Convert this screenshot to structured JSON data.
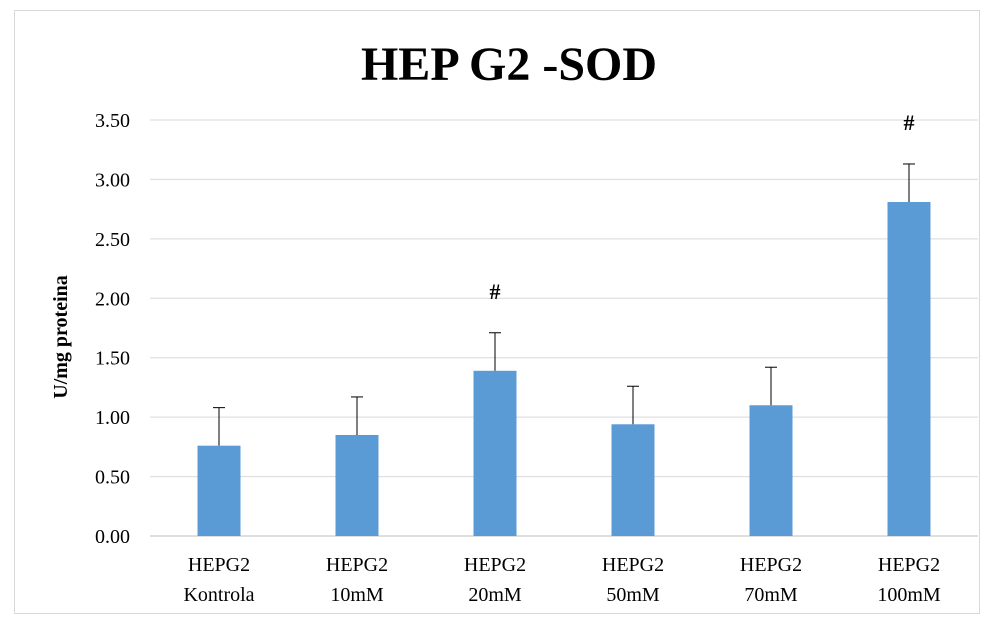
{
  "chart_data": {
    "type": "bar",
    "title": "HEP G2 -SOD",
    "xlabel": "",
    "ylabel": "U/mg proteina",
    "ylim": [
      0,
      3.5
    ],
    "yticks": [
      "0.00",
      "0.50",
      "1.00",
      "1.50",
      "2.00",
      "2.50",
      "3.00",
      "3.50"
    ],
    "grid": true,
    "bar_color": "#5b9bd5",
    "categories": [
      [
        "HEPG2",
        "Kontrola"
      ],
      [
        "HEPG2",
        "10mM"
      ],
      [
        "HEPG2",
        "20mM"
      ],
      [
        "HEPG2",
        "50mM"
      ],
      [
        "HEPG2",
        "70mM"
      ],
      [
        "HEPG2",
        "100mM"
      ]
    ],
    "values": [
      0.76,
      0.85,
      1.39,
      0.94,
      1.1,
      2.81
    ],
    "errors": [
      0.32,
      0.32,
      0.32,
      0.32,
      0.32,
      0.32
    ],
    "significance": [
      "",
      "",
      "#",
      "",
      "",
      "#"
    ]
  }
}
